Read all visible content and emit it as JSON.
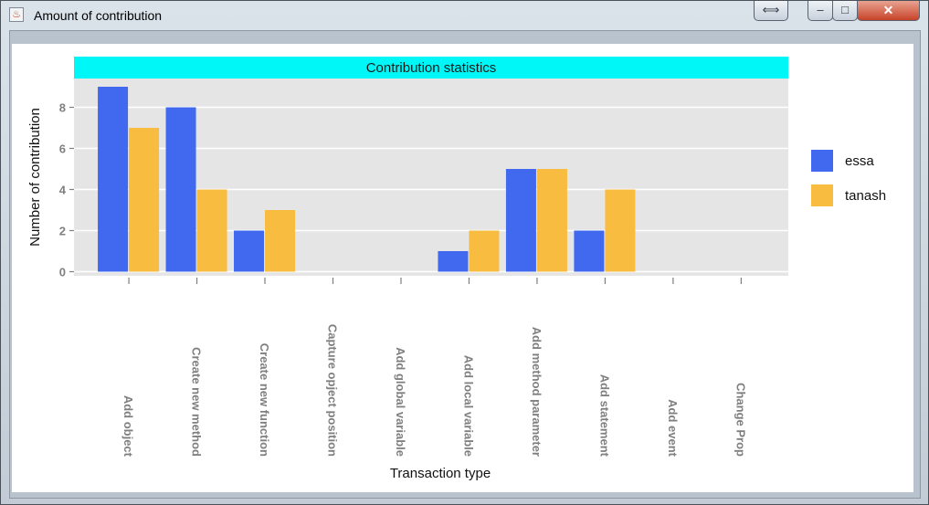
{
  "window": {
    "title": "Amount of contribution",
    "icon": "java-cup-icon",
    "buttons": {
      "resize": "⟺",
      "minimize": "–",
      "maximize": "□",
      "close": "✕"
    }
  },
  "chart_data": {
    "type": "bar",
    "title": "Contribution statistics",
    "xlabel": "Transaction type",
    "ylabel": "Number of contribution",
    "categories": [
      "Add object",
      "Create new method",
      "Create new function",
      "Capture opject position",
      "Add global variable",
      "Add local variable",
      "Add method parameter",
      "Add statement",
      "Add event",
      "Change Prop"
    ],
    "series": [
      {
        "name": "essa",
        "color": "#4169f0",
        "values": [
          9,
          8,
          2,
          0,
          0,
          1,
          5,
          2,
          0,
          0
        ]
      },
      {
        "name": "tanash",
        "color": "#f8bd40",
        "values": [
          7,
          4,
          3,
          0,
          0,
          2,
          5,
          4,
          0,
          0
        ]
      }
    ],
    "yticks": [
      0,
      2,
      4,
      6,
      8
    ],
    "ylim": [
      -0.2,
      9.4
    ],
    "grid": true,
    "legend_position": "right",
    "strip_color": "#00f7f7",
    "panel_color": "#e5e5e5"
  }
}
